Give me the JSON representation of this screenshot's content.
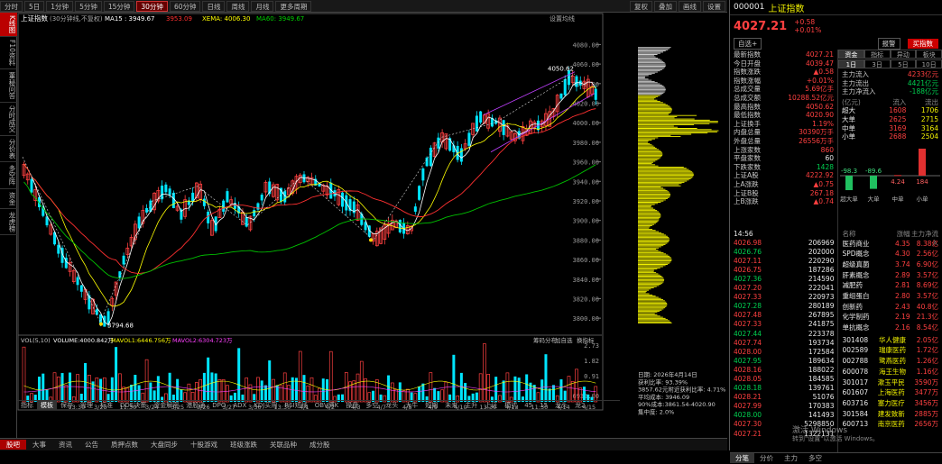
{
  "toolbar": {
    "items": [
      "分时",
      "5日",
      "1分钟",
      "5分钟",
      "15分钟",
      "30分钟",
      "60分钟",
      "日线",
      "周线",
      "月线",
      "更多周期"
    ],
    "active": "30分钟",
    "right": [
      "复权",
      "叠加",
      "画线",
      "设置"
    ]
  },
  "chart": {
    "title": "上证指数",
    "subtitle": "(30分钟线,不复权)",
    "ma5": "MA15 : 3949.67",
    "ma2": "3953.09",
    "ma3": "XEMA: 4006.30",
    "ma4": "MA60: 3949.67",
    "settings": "设置均线",
    "y_ticks": [
      "4080.00",
      "4060.00",
      "4040.00",
      "4020.00",
      "4000.00",
      "3980.00",
      "3960.00",
      "3940.00",
      "3920.00",
      "3900.00",
      "3880.00",
      "3860.00",
      "3840.00",
      "3820.00",
      "3800.00"
    ],
    "high_label": "4050.62",
    "low_label": "3794.68"
  },
  "volume": {
    "label": "VOL(5,10)",
    "vol": "VOLUME:4000.842万",
    "mavol1": "MAVOL1:6446.756万",
    "mavol2": "MAVOL2:6304.723万",
    "ticks": [
      "2.73",
      "1.82",
      "0.91"
    ],
    "unit": "6933.00",
    "links": [
      "筹码分布",
      "加自选",
      "换指标"
    ],
    "dates": [
      "3/20",
      "13:30",
      "3/23",
      "11:30",
      "3/24",
      "3/25",
      "3/26",
      "3/27",
      "3/30",
      "13:30",
      "4/1",
      "4/2",
      "4/3",
      "4/7",
      "4/8",
      "4/9",
      "4/10",
      "13:30",
      "4/13",
      "11:30",
      "4/14",
      "4/15"
    ]
  },
  "indicator_tabs": [
    "指标",
    "模板",
    "保存",
    "管理",
    "标准",
    "DDE决策",
    "资金解密",
    "港股通",
    "DPO",
    "ADX",
    "KDJ买用",
    "RSI短线",
    "OBV博K",
    "操盘",
    "多空",
    "龙头",
    "大牛",
    "短期",
    "未来",
    "主升",
    "上证",
    "模式",
    "45",
    "15",
    "龙头",
    "龙2"
  ],
  "chip": {
    "date": "日期: 2026年4月14日",
    "profit": "获利比率: 93.39%",
    "cost": "3857.62元附近获利比率: 4.71%",
    "avg": "平均成本: 3946.09",
    "range90": "90%成本:3861.54-4020.90",
    "conc": "集中度: 2.0%"
  },
  "bottombar": [
    "股吧",
    "大事",
    "资讯",
    "公告",
    "质押点数",
    "大盘同步",
    "十股游戏",
    "班级涨跌",
    "关联品种",
    "成分股"
  ],
  "leftbar": [
    "K线图",
    "F10资料",
    "董秘问答",
    "分时成交",
    "分价表",
    "多空阵",
    "资金",
    "龙虎榜"
  ],
  "quote": {
    "code": "000001",
    "name": "上证指数",
    "price": "4027.21",
    "chg": "+0.58",
    "pct": "+0.01%",
    "btn1": "自选+",
    "btn2": "报警",
    "btn3": "买指数"
  },
  "stats": [
    [
      "最新指数",
      "4027.21"
    ],
    [
      "今日开盘",
      "4039.47"
    ],
    [
      "指数涨跌",
      "▲0.58"
    ],
    [
      "指数涨幅",
      "+0.01%"
    ],
    [
      "总成交量",
      "5.69亿手"
    ],
    [
      "总成交额",
      "10288.52亿元"
    ],
    [
      "最高指数",
      "4050.62"
    ],
    [
      "最低指数",
      "4020.90"
    ],
    [
      "上证换手",
      "1.19%"
    ],
    [
      "内盘总量",
      "30390万手"
    ],
    [
      "外盘总量",
      "26556万手"
    ],
    [
      "上涨家数",
      "860"
    ],
    [
      "平盘家数",
      "60"
    ],
    [
      "下跌家数",
      "1428"
    ],
    [
      "上证A股",
      "4222.92"
    ],
    [
      "上A涨跌",
      "▲0.75"
    ],
    [
      "上证B股",
      "267.18"
    ],
    [
      "上B涨跌",
      "▲0.74"
    ]
  ],
  "fund_tabs": [
    "资金",
    "指标",
    "异动",
    "板块"
  ],
  "fund_periods": [
    "1日",
    "3日",
    "5日",
    "10日"
  ],
  "fund_flow": [
    [
      "主力流入",
      "4233亿元"
    ],
    [
      "主力流出",
      "4421亿元"
    ],
    [
      "主力净流入",
      "-188亿元"
    ]
  ],
  "fund_table": {
    "head": [
      "(亿元)",
      "流入",
      "流出"
    ],
    "rows": [
      [
        "超大",
        "1608",
        "1706"
      ],
      [
        "大单",
        "2625",
        "2715"
      ],
      [
        "中单",
        "3169",
        "3164"
      ],
      [
        "小单",
        "2688",
        "2504"
      ]
    ]
  },
  "fund_bars": [
    {
      "label": "-98.3",
      "v": -98.3
    },
    {
      "label": "-89.6",
      "v": -89.6
    },
    {
      "label": "4.24",
      "v": 4.24
    },
    {
      "label": "184",
      "v": 184
    }
  ],
  "fund_bar_cats": [
    "超大单",
    "大单",
    "中单",
    "小单"
  ],
  "ticks_time": "14:56",
  "ticks": [
    [
      "4026.98",
      "206969"
    ],
    [
      "4026.76",
      "202000"
    ],
    [
      "4027.11",
      "220290"
    ],
    [
      "4026.75",
      "187286"
    ],
    [
      "4027.36",
      "214590"
    ],
    [
      "4027.20",
      "222041"
    ],
    [
      "4027.33",
      "220973"
    ],
    [
      "4027.28",
      "280189"
    ],
    [
      "4027.48",
      "267895"
    ],
    [
      "4027.33",
      "241875"
    ],
    [
      "4027.44",
      "223378"
    ],
    [
      "4027.74",
      "193734"
    ],
    [
      "4028.00",
      "172584"
    ],
    [
      "4027.95",
      "189634"
    ],
    [
      "4028.16",
      "188022"
    ],
    [
      "4028.05",
      "184585"
    ],
    [
      "4028.18",
      "139761"
    ],
    [
      "4028.21",
      "51076"
    ],
    [
      "4027.99",
      "170383"
    ],
    [
      "4028.00",
      "141493"
    ],
    [
      "4027.30",
      "5298850"
    ],
    [
      "4027.21",
      "1322131"
    ]
  ],
  "ticks_marks": [
    "14:57",
    "15:00"
  ],
  "sector_head": [
    "名称",
    "涨幅",
    "主力净流入"
  ],
  "sectors": [
    [
      "医药商业",
      "4.35",
      "8.38亿"
    ],
    [
      "SPD概念",
      "4.30",
      "2.56亿"
    ],
    [
      "超级真菌",
      "3.74",
      "6.90亿"
    ],
    [
      "肝素概念",
      "2.89",
      "3.57亿"
    ],
    [
      "减肥药",
      "2.81",
      "8.69亿"
    ],
    [
      "重组蛋白",
      "2.80",
      "3.57亿"
    ],
    [
      "创新药",
      "2.43",
      "40.8亿"
    ],
    [
      "化学制药",
      "2.19",
      "21.3亿"
    ],
    [
      "单抗概念",
      "2.16",
      "8.54亿"
    ]
  ],
  "stocks": [
    [
      "301408",
      "华人健康",
      "2.05亿"
    ],
    [
      "002589",
      "瑞康医药",
      "1.72亿"
    ],
    [
      "002788",
      "鹭燕医药",
      "1.26亿"
    ],
    [
      "600078",
      "海王生物",
      "1.16亿"
    ],
    [
      "301017",
      "漱玉平民",
      "3590万"
    ],
    [
      "601607",
      "上海医药",
      "3477万"
    ],
    [
      "603716",
      "塞力医疗",
      "3456万"
    ],
    [
      "301584",
      "建发致新",
      "2885万"
    ],
    [
      "600713",
      "南京医药",
      "2656万"
    ]
  ],
  "right_tabs": [
    "分笔",
    "分价",
    "主力",
    "多空"
  ],
  "watermark": [
    "激活 Windows",
    "转到\"设置\"以激活 Windows。"
  ],
  "colors": {
    "up": "#ff4040",
    "down": "#00e5ff",
    "ma1": "#ffffff",
    "ma2": "#ff3030",
    "ma3": "#ffff00",
    "ma4": "#00d000"
  }
}
